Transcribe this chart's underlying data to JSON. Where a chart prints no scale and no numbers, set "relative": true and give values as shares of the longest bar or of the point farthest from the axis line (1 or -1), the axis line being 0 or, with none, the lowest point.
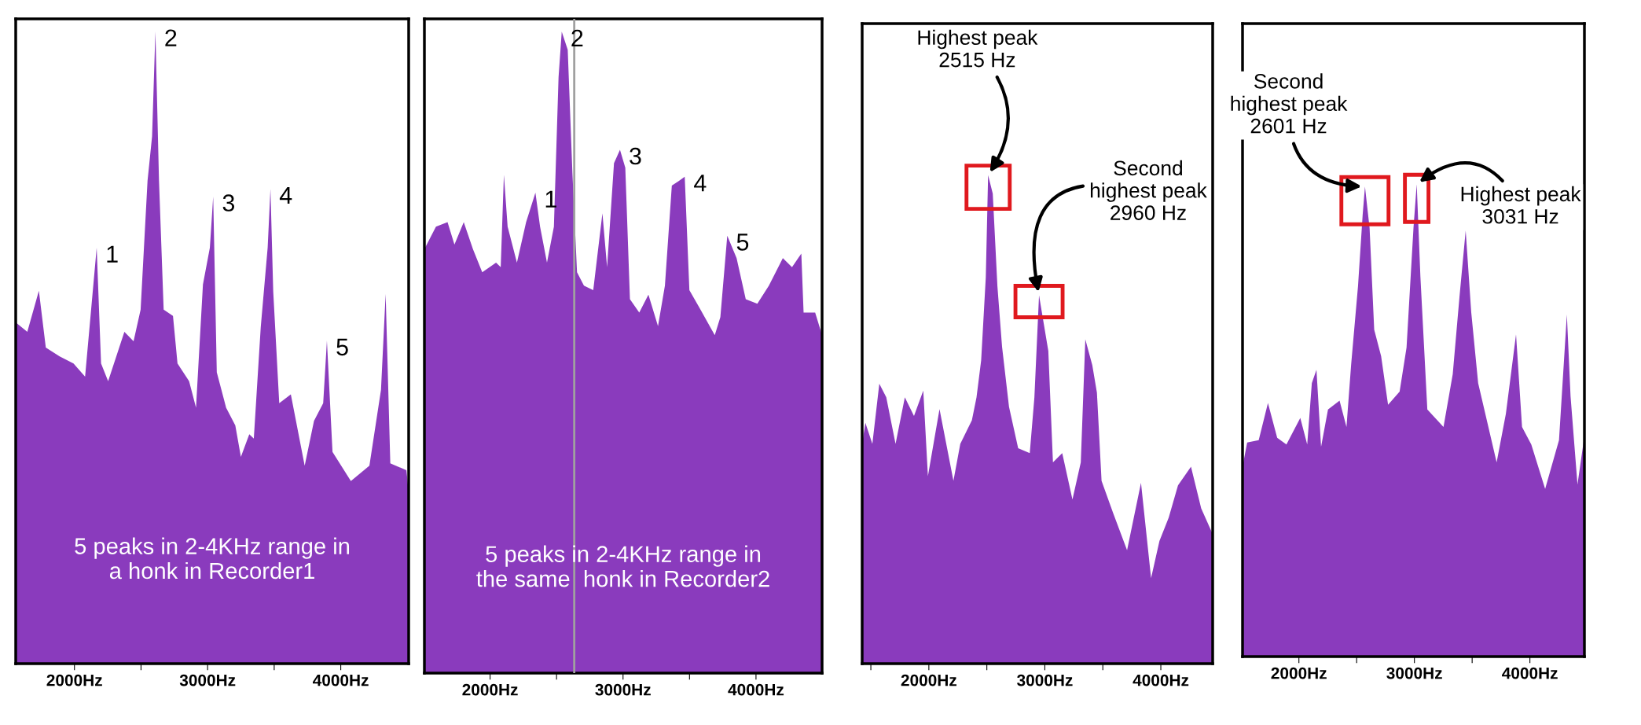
{
  "chart_data": [
    {
      "type": "area",
      "relative": true,
      "tick_labels": "x",
      "color": "#8a3bbd",
      "xlim": [
        1559,
        4510
      ],
      "xticks": [
        {
          "value": 2000,
          "label": "2000Hz"
        },
        {
          "value": 2500,
          "label": null
        },
        {
          "value": 3000,
          "label": "3000Hz"
        },
        {
          "value": 3500,
          "label": null
        },
        {
          "value": 4000,
          "label": "4000Hz"
        }
      ],
      "x": [
        1559,
        1646,
        1733,
        1785,
        1889,
        1993,
        2080,
        2167,
        2200,
        2253,
        2375,
        2444,
        2497,
        2549,
        2583,
        2608,
        2635,
        2670,
        2740,
        2774,
        2861,
        2913,
        2965,
        3017,
        3042,
        3069,
        3139,
        3208,
        3250,
        3313,
        3347,
        3399,
        3451,
        3472,
        3493,
        3538,
        3625,
        3729,
        3799,
        3868,
        3896,
        3938,
        4076,
        4215,
        4302,
        4337,
        4372,
        4493,
        4510
      ],
      "values": [
        0.54,
        0.525,
        0.59,
        0.5,
        0.486,
        0.475,
        0.454,
        0.658,
        0.475,
        0.447,
        0.525,
        0.51,
        0.56,
        0.764,
        0.834,
        1.0,
        0.764,
        0.56,
        0.55,
        0.475,
        0.447,
        0.405,
        0.6,
        0.658,
        0.739,
        0.461,
        0.405,
        0.377,
        0.327,
        0.363,
        0.356,
        0.532,
        0.658,
        0.751,
        0.588,
        0.412,
        0.426,
        0.313,
        0.384,
        0.412,
        0.511,
        0.335,
        0.289,
        0.313,
        0.433,
        0.585,
        0.317,
        0.306,
        0.271
      ],
      "annotations": [
        {
          "text": "1",
          "x": 2167,
          "y": 0.658
        },
        {
          "text": "2",
          "x": 2608,
          "y": 1.0
        },
        {
          "text": "3",
          "x": 3042,
          "y": 0.739
        },
        {
          "text": "4",
          "x": 3472,
          "y": 0.751
        },
        {
          "text": "5",
          "x": 3896,
          "y": 0.511
        },
        "5 peaks in 2-4KHz range in\na honk in Recorder1"
      ]
    },
    {
      "type": "area",
      "relative": true,
      "tick_labels": "x",
      "color": "#8a3bbd",
      "xlim": [
        1506,
        4497
      ],
      "xticks": [
        {
          "value": 2000,
          "label": "2000Hz"
        },
        {
          "value": 2500,
          "label": null
        },
        {
          "value": 3000,
          "label": "3000Hz"
        },
        {
          "value": 3500,
          "label": null
        },
        {
          "value": 4000,
          "label": "4000Hz"
        }
      ],
      "x": [
        1506,
        1593,
        1680,
        1732,
        1802,
        1871,
        1941,
        2045,
        2080,
        2104,
        2132,
        2202,
        2271,
        2341,
        2376,
        2428,
        2480,
        2515,
        2539,
        2584,
        2619,
        2654,
        2706,
        2776,
        2845,
        2880,
        2932,
        2977,
        3017,
        3052,
        3122,
        3191,
        3263,
        3315,
        3367,
        3419,
        3464,
        3499,
        3576,
        3690,
        3732,
        3784,
        3854,
        3923,
        4010,
        4097,
        4202,
        4271,
        4341,
        4358,
        4445,
        4497
      ],
      "values": [
        0.661,
        0.696,
        0.703,
        0.668,
        0.703,
        0.661,
        0.625,
        0.64,
        0.633,
        0.777,
        0.696,
        0.64,
        0.703,
        0.749,
        0.696,
        0.64,
        0.696,
        0.929,
        1.0,
        0.972,
        0.781,
        0.625,
        0.604,
        0.597,
        0.717,
        0.633,
        0.795,
        0.816,
        0.788,
        0.583,
        0.562,
        0.59,
        0.541,
        0.604,
        0.76,
        0.767,
        0.774,
        0.597,
        0.569,
        0.527,
        0.555,
        0.682,
        0.647,
        0.583,
        0.576,
        0.604,
        0.647,
        0.633,
        0.654,
        0.562,
        0.562,
        0.527
      ],
      "ref_lines": [
        {
          "axis": "x",
          "value": 2633,
          "color": "#a0a0a0"
        }
      ],
      "annotations": [
        {
          "text": "1",
          "x": 2341,
          "y": 0.749
        },
        {
          "text": "2",
          "x": 2539,
          "y": 1.0
        },
        {
          "text": "3",
          "x": 2977,
          "y": 0.816
        },
        {
          "text": "4",
          "x": 3464,
          "y": 0.774
        },
        {
          "text": "5",
          "x": 3784,
          "y": 0.682
        },
        "5 peaks in 2-4KHz range in\nthe same  honk in Recorder2"
      ]
    },
    {
      "type": "area",
      "relative": true,
      "tick_labels": "x",
      "color": "#8a3bbd",
      "xlim": [
        1425,
        4447
      ],
      "xticks": [
        {
          "value": 1500,
          "label": null
        },
        {
          "value": 2000,
          "label": "2000Hz"
        },
        {
          "value": 2500,
          "label": null
        },
        {
          "value": 3000,
          "label": "3000Hz"
        },
        {
          "value": 3500,
          "label": null
        },
        {
          "value": 4000,
          "label": "4000Hz"
        }
      ],
      "x": [
        1425,
        1453,
        1513,
        1573,
        1633,
        1713,
        1793,
        1872,
        1952,
        1992,
        2092,
        2212,
        2271,
        2371,
        2411,
        2451,
        2491,
        2511,
        2551,
        2591,
        2631,
        2691,
        2770,
        2870,
        2910,
        2950,
        2990,
        3030,
        3070,
        3150,
        3238,
        3310,
        3349,
        3409,
        3449,
        3489,
        3589,
        3709,
        3829,
        3916,
        3988,
        4068,
        4148,
        4260,
        4348,
        4447
      ],
      "values": [
        0.45,
        0.493,
        0.45,
        0.573,
        0.545,
        0.45,
        0.545,
        0.507,
        0.559,
        0.384,
        0.521,
        0.374,
        0.45,
        0.498,
        0.545,
        0.621,
        0.791,
        1.0,
        0.962,
        0.773,
        0.649,
        0.526,
        0.441,
        0.431,
        0.545,
        0.754,
        0.697,
        0.64,
        0.412,
        0.431,
        0.336,
        0.412,
        0.664,
        0.611,
        0.555,
        0.374,
        0.308,
        0.232,
        0.37,
        0.175,
        0.251,
        0.299,
        0.365,
        0.403,
        0.318,
        0.265
      ],
      "annotations": [
        {
          "text": "Highest peak\n2515 Hz",
          "x": 2511,
          "y": 1.0
        },
        {
          "text": "Second\nhighest peak\n2960 Hz",
          "x": 2950,
          "y": 0.754
        }
      ]
    },
    {
      "type": "area",
      "relative": true,
      "tick_labels": "x",
      "color": "#8a3bbd",
      "xlim": [
        1512,
        4472
      ],
      "xticks": [
        {
          "value": 2000,
          "label": "2000Hz"
        },
        {
          "value": 2500,
          "label": null
        },
        {
          "value": 3000,
          "label": "3000Hz"
        },
        {
          "value": 3500,
          "label": null
        },
        {
          "value": 4000,
          "label": "4000Hz"
        }
      ],
      "x": [
        1512,
        1552,
        1652,
        1732,
        1812,
        1892,
        2012,
        2072,
        2112,
        2152,
        2192,
        2252,
        2352,
        2412,
        2452,
        2512,
        2552,
        2572,
        2612,
        2652,
        2712,
        2772,
        2872,
        2932,
        2992,
        3020,
        3052,
        3112,
        3252,
        3332,
        3392,
        3444,
        3492,
        3552,
        3712,
        3792,
        3880,
        3932,
        4012,
        4132,
        4252,
        4320,
        4352,
        4412,
        4472
      ],
      "values": [
        0.402,
        0.453,
        0.458,
        0.537,
        0.463,
        0.449,
        0.505,
        0.449,
        0.579,
        0.607,
        0.444,
        0.523,
        0.542,
        0.486,
        0.617,
        0.785,
        0.935,
        0.995,
        0.907,
        0.692,
        0.636,
        0.533,
        0.561,
        0.654,
        0.907,
        1.0,
        0.804,
        0.523,
        0.486,
        0.598,
        0.766,
        0.902,
        0.729,
        0.579,
        0.411,
        0.514,
        0.682,
        0.486,
        0.449,
        0.355,
        0.458,
        0.724,
        0.551,
        0.364,
        0.467
      ],
      "annotations": [
        {
          "text": "Second\nhighest peak\n2601 Hz",
          "x": 2572,
          "y": 0.995
        },
        {
          "text": "Highest peak\n3031 Hz",
          "x": 3020,
          "y": 1.0
        }
      ]
    }
  ]
}
